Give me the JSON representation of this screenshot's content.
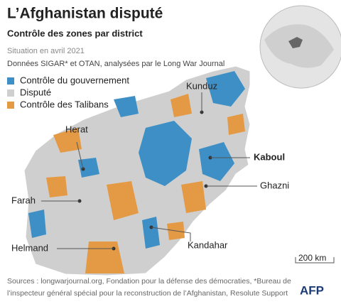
{
  "header": {
    "title": "L’Afghanistan disputé",
    "subtitle": "Contrôle des zones par district",
    "date": "Situation en avril 2021",
    "note": "Données SIGAR* et OTAN, analysées par le Long War Journal"
  },
  "legend": [
    {
      "label": "Contrôle du gouvernement",
      "color": "#3d8fc6"
    },
    {
      "label": "Disputé",
      "color": "#cfcfcf"
    },
    {
      "label": "Contrôle des Talibans",
      "color": "#e49a45"
    }
  ],
  "map": {
    "cities": [
      {
        "label": "Kunduz"
      },
      {
        "label": "Herat"
      },
      {
        "label": "Kaboul"
      },
      {
        "label": "Farah"
      },
      {
        "label": "Ghazni"
      },
      {
        "label": "Helmand"
      },
      {
        "label": "Kandahar"
      }
    ],
    "scale": "200 km"
  },
  "footer": {
    "lines": [
      "Sources : longwarjournal.org, Fondation pour la défense des démocraties, *Bureau de",
      "l’inspecteur général spécial pour la reconstruction de l’Afghanistan, Resolute Support"
    ],
    "logo": "AFP"
  }
}
